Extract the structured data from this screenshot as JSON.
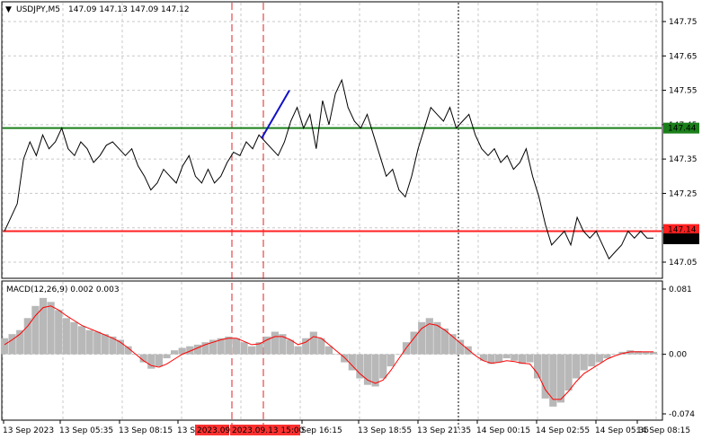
{
  "header": {
    "arrow": "▼",
    "symbol": "USDJPY,M5",
    "ohlc": "147.09 147.13 147.09 147.12"
  },
  "macd": {
    "label": "MACD(12,26,9) 0.002 0.003",
    "scale": [
      "0.081",
      "0.00",
      "-0.074"
    ]
  },
  "price_scale": [
    "147.75",
    "147.65",
    "147.55",
    "147.45",
    "147.35",
    "147.25",
    "147.15",
    "147.05"
  ],
  "price_tags": {
    "green_level": "147.44",
    "red_level": "147.14",
    "current": "147.12"
  },
  "time_axis": [
    "13 Sep 2023",
    "13 Sep 05:35",
    "13 Sep 08:15",
    "13 Sep 1",
    "2023.09",
    "2023.09.13 15:00",
    "Sep 16:15",
    "13 Sep 18:55",
    "13 Sep 21:35",
    "14 Sep 00:15",
    "14 Sep 02:55",
    "14 Sep 05:35",
    "14 Sep 08:15"
  ],
  "colors": {
    "price_line": "#000000",
    "green_level": "#1a7f1a",
    "red_level": "#ff2020",
    "trend_line": "#1010c8",
    "macd_hist": "#b8b8b8",
    "macd_signal": "#ff0000",
    "grid": "#c8c8c8",
    "highlight_tag": "#ff3030"
  },
  "chart_data": {
    "type": "line",
    "title": "USDJPY,M5",
    "price_ylim": [
      147.0,
      147.8
    ],
    "macd_ylim": [
      -0.074,
      0.081
    ],
    "levels": [
      147.44,
      147.14
    ],
    "price": [
      147.14,
      147.18,
      147.22,
      147.35,
      147.4,
      147.36,
      147.42,
      147.38,
      147.4,
      147.44,
      147.38,
      147.36,
      147.4,
      147.38,
      147.34,
      147.36,
      147.39,
      147.4,
      147.38,
      147.36,
      147.38,
      147.33,
      147.3,
      147.26,
      147.28,
      147.32,
      147.3,
      147.28,
      147.33,
      147.36,
      147.3,
      147.28,
      147.32,
      147.28,
      147.3,
      147.34,
      147.37,
      147.36,
      147.4,
      147.38,
      147.42,
      147.4,
      147.38,
      147.36,
      147.4,
      147.46,
      147.5,
      147.44,
      147.48,
      147.38,
      147.52,
      147.45,
      147.54,
      147.58,
      147.5,
      147.46,
      147.44,
      147.48,
      147.42,
      147.36,
      147.3,
      147.32,
      147.26,
      147.24,
      147.3,
      147.38,
      147.44,
      147.5,
      147.48,
      147.46,
      147.5,
      147.44,
      147.46,
      147.48,
      147.42,
      147.38,
      147.36,
      147.38,
      147.34,
      147.36,
      147.32,
      147.34,
      147.38,
      147.3,
      147.24,
      147.16,
      147.1,
      147.12,
      147.14,
      147.1,
      147.18,
      147.14,
      147.12,
      147.14,
      147.1,
      147.06,
      147.08,
      147.1,
      147.14,
      147.12,
      147.14,
      147.12,
      147.12
    ],
    "macd_hist": [
      0.02,
      0.025,
      0.03,
      0.045,
      0.06,
      0.07,
      0.065,
      0.055,
      0.045,
      0.04,
      0.035,
      0.03,
      0.028,
      0.025,
      0.022,
      0.018,
      0.01,
      0.0,
      -0.01,
      -0.018,
      -0.015,
      -0.005,
      0.005,
      0.008,
      0.01,
      0.012,
      0.015,
      0.018,
      0.02,
      0.022,
      0.02,
      0.015,
      0.01,
      0.015,
      0.022,
      0.028,
      0.025,
      0.018,
      0.01,
      0.02,
      0.028,
      0.02,
      0.01,
      0.0,
      -0.01,
      -0.02,
      -0.03,
      -0.038,
      -0.04,
      -0.03,
      -0.015,
      0.0,
      0.015,
      0.028,
      0.04,
      0.045,
      0.04,
      0.032,
      0.025,
      0.018,
      0.01,
      0.0,
      -0.008,
      -0.012,
      -0.01,
      -0.005,
      -0.008,
      -0.012,
      -0.01,
      -0.03,
      -0.055,
      -0.065,
      -0.06,
      -0.045,
      -0.03,
      -0.02,
      -0.015,
      -0.01,
      -0.005,
      0.0,
      0.003,
      0.005,
      0.004,
      0.003,
      0.003
    ],
    "macd_signal": [
      0.012,
      0.018,
      0.025,
      0.035,
      0.048,
      0.058,
      0.06,
      0.055,
      0.048,
      0.042,
      0.036,
      0.032,
      0.028,
      0.024,
      0.02,
      0.015,
      0.008,
      0.0,
      -0.008,
      -0.014,
      -0.016,
      -0.012,
      -0.006,
      0.0,
      0.004,
      0.008,
      0.012,
      0.015,
      0.018,
      0.02,
      0.02,
      0.016,
      0.012,
      0.013,
      0.018,
      0.022,
      0.022,
      0.018,
      0.012,
      0.015,
      0.022,
      0.02,
      0.012,
      0.004,
      -0.004,
      -0.014,
      -0.024,
      -0.032,
      -0.036,
      -0.032,
      -0.02,
      -0.006,
      0.008,
      0.02,
      0.032,
      0.038,
      0.036,
      0.03,
      0.022,
      0.014,
      0.006,
      -0.002,
      -0.008,
      -0.011,
      -0.01,
      -0.008,
      -0.009,
      -0.011,
      -0.012,
      -0.024,
      -0.044,
      -0.056,
      -0.056,
      -0.046,
      -0.034,
      -0.024,
      -0.018,
      -0.012,
      -0.006,
      -0.002,
      0.001,
      0.003,
      0.003,
      0.003,
      0.003
    ]
  }
}
